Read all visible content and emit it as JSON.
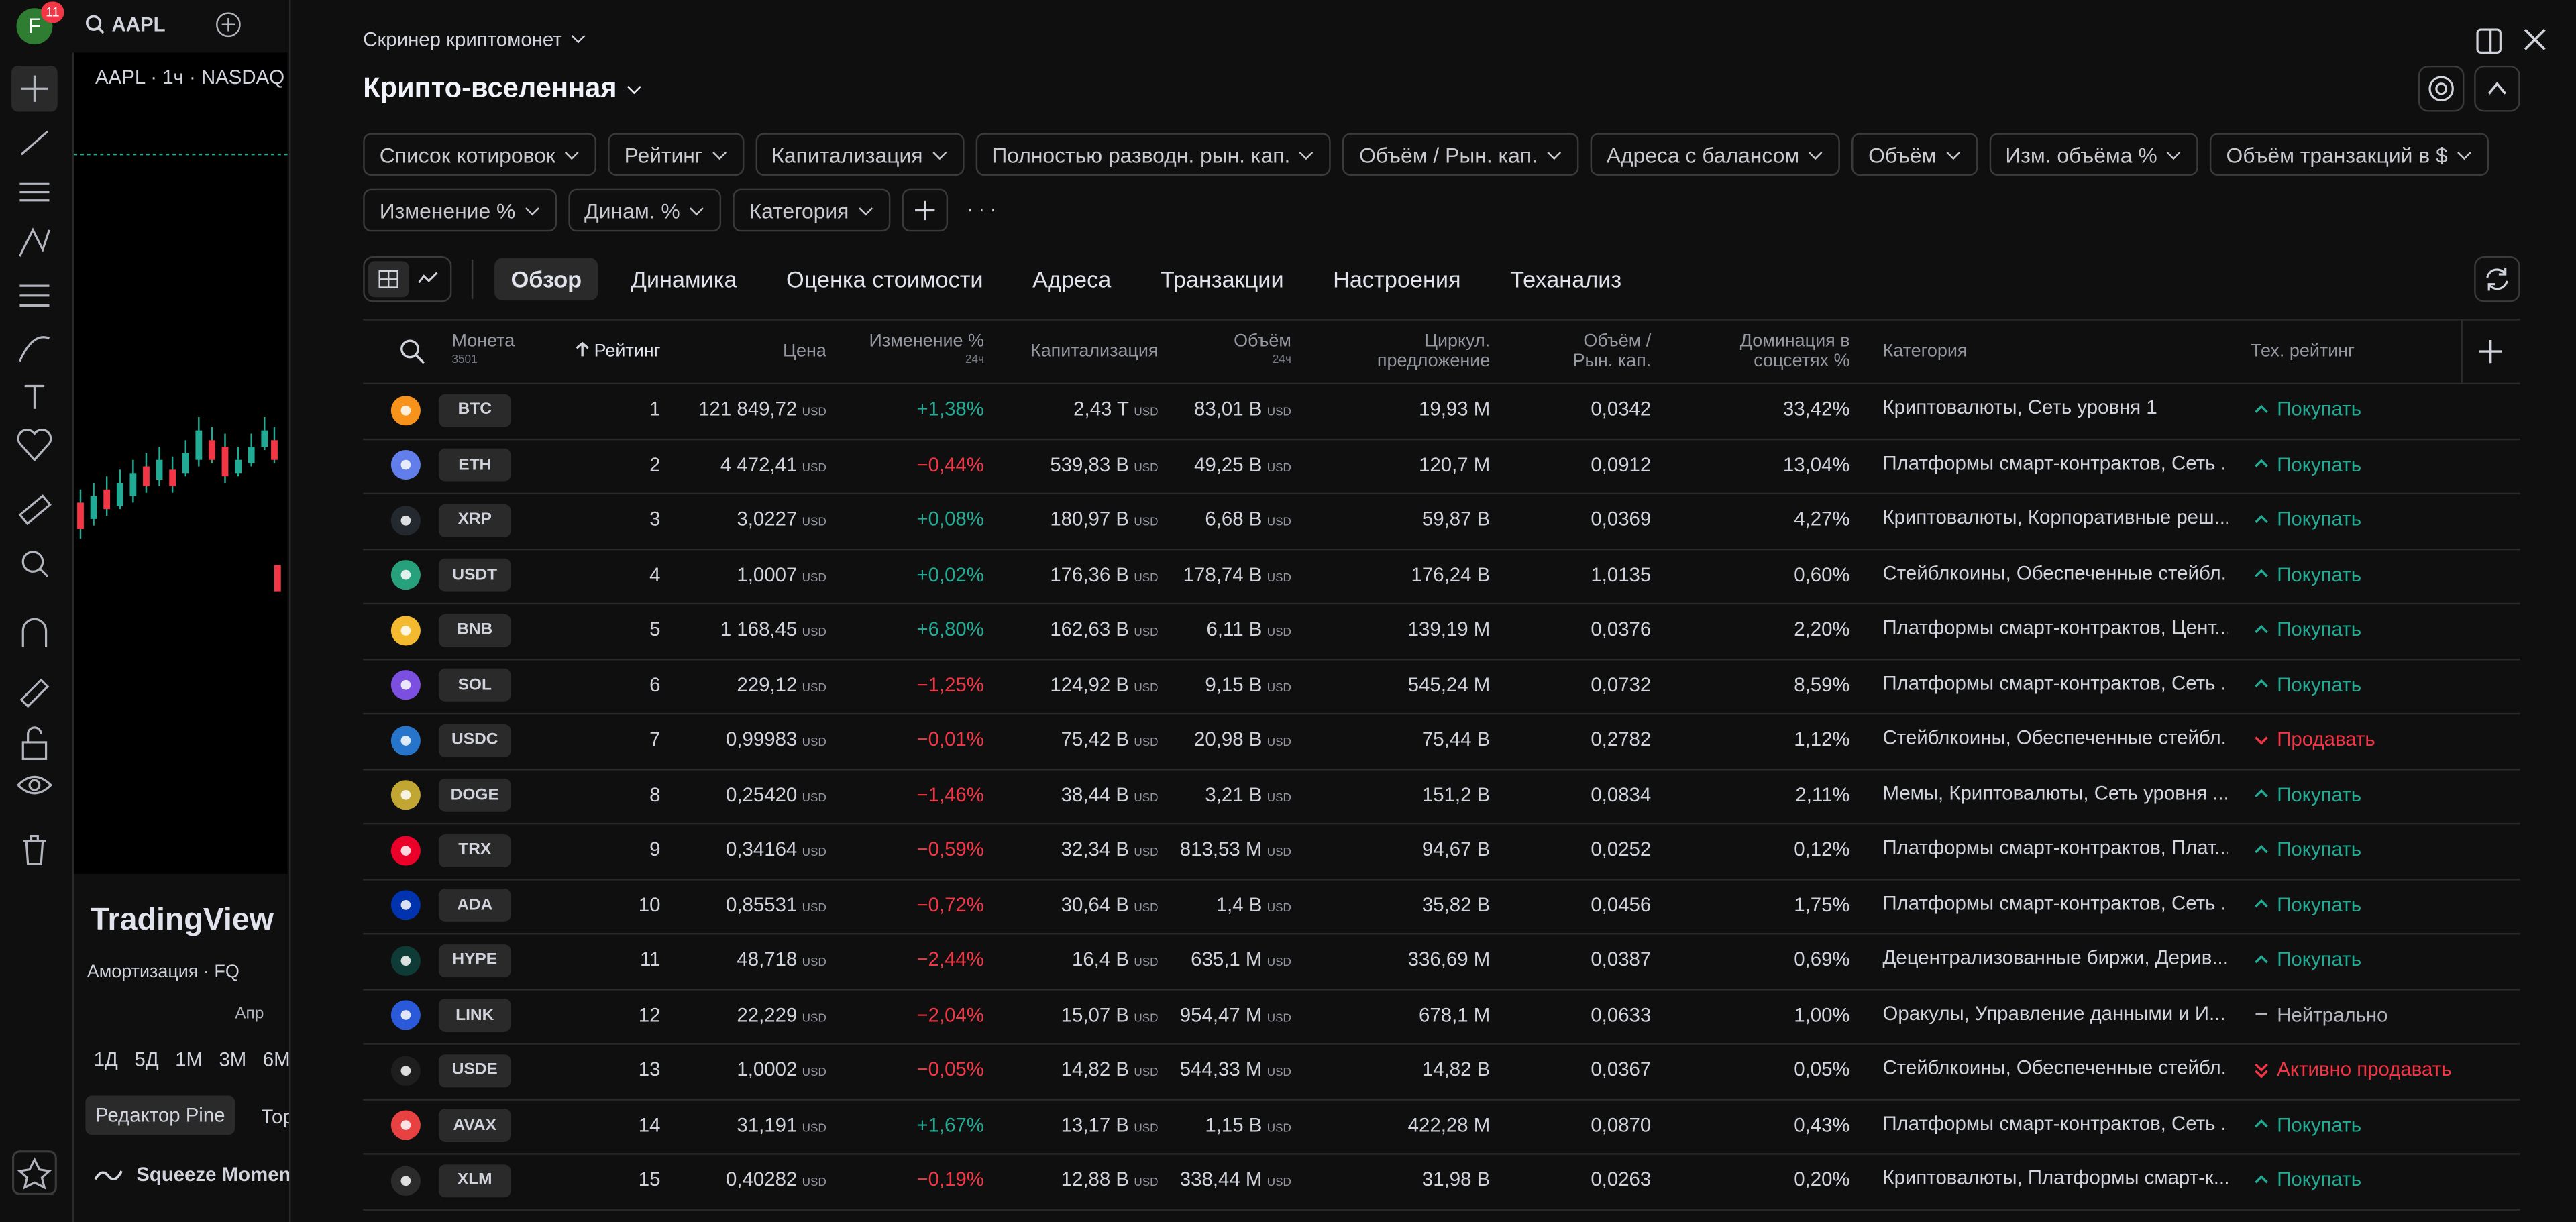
{
  "left": {
    "avatar": "F",
    "notifications": "11",
    "symbol": "AAPL",
    "chart_label": "AAPL · 1ч · NASDAQ",
    "logo": "TradingView",
    "panel_label": "Амортизация · FQ",
    "axis_month": "Апр",
    "periods": [
      "1Д",
      "5Д",
      "1М",
      "3М",
      "6М"
    ],
    "pine_tab": "Редактор Pine",
    "next_tab": "Тор",
    "indicator": "Squeeze Moment"
  },
  "header": {
    "breadcrumb": "Скринер криптомонет",
    "title": "Крипто-вселенная"
  },
  "filters": [
    "Список котировок",
    "Рейтинг",
    "Капитализация",
    "Полностью разводн. рын. кап.",
    "Объём / Рын. кап.",
    "Адреса с балансом",
    "Объём",
    "Изм. объёма %",
    "Объём транзакций в $",
    "Изменение %",
    "Динам. %",
    "Категория"
  ],
  "tabs": {
    "items": [
      "Обзор",
      "Динамика",
      "Оценка стоимости",
      "Адреса",
      "Транзакции",
      "Настроения",
      "Теханализ"
    ],
    "active": 0
  },
  "table": {
    "currency": "USD",
    "columns": {
      "coin": {
        "label": "Монета",
        "sub": "3501"
      },
      "rank": {
        "label": "Рейтинг"
      },
      "price": {
        "label": "Цена"
      },
      "change": {
        "label": "Изменение %",
        "sub": "24ч"
      },
      "cap": {
        "label": "Капитализация"
      },
      "volume": {
        "label": "Объём",
        "sub": "24ч"
      },
      "circulating": {
        "label": "Циркул. предложение"
      },
      "vol_cap": {
        "label": "Объём / Рын. кап."
      },
      "dominance": {
        "label": "Доминация в соцсетях %"
      },
      "category": {
        "label": "Категория"
      },
      "rating": {
        "label": "Тех. рейтинг"
      }
    },
    "colors": {
      "up": "#22ab94",
      "down": "#f23645"
    },
    "rows": [
      {
        "ticker": "BTC",
        "icon_color": "#f7931a",
        "rank": 1,
        "price": "121 849,72",
        "change": "+1,38%",
        "cap": "2,43 T",
        "volume": "83,01 B",
        "circulating": "19,93 M",
        "vol_cap": "0,0342",
        "dominance": "33,42%",
        "category": "Криптовалюты, Сеть уровня 1",
        "rating": "Покупать",
        "rating_color": "#22ab94",
        "rating_arrow": "up"
      },
      {
        "ticker": "ETH",
        "icon_color": "#627eea",
        "rank": 2,
        "price": "4 472,41",
        "change": "−0,44%",
        "cap": "539,83 B",
        "volume": "49,25 B",
        "circulating": "120,7 M",
        "vol_cap": "0,0912",
        "dominance": "13,04%",
        "category": "Платформы смарт-контрактов, Сеть ...",
        "rating": "Покупать",
        "rating_color": "#22ab94",
        "rating_arrow": "up"
      },
      {
        "ticker": "XRP",
        "icon_color": "#23292f",
        "rank": 3,
        "price": "3,0227",
        "change": "+0,08%",
        "cap": "180,97 B",
        "volume": "6,68 B",
        "circulating": "59,87 B",
        "vol_cap": "0,0369",
        "dominance": "4,27%",
        "category": "Криптовалюты, Корпоративные реш...",
        "rating": "Покупать",
        "rating_color": "#22ab94",
        "rating_arrow": "up"
      },
      {
        "ticker": "USDT",
        "icon_color": "#26a17b",
        "rank": 4,
        "price": "1,0007",
        "change": "+0,02%",
        "cap": "176,36 B",
        "volume": "178,74 B",
        "circulating": "176,24 B",
        "vol_cap": "1,0135",
        "dominance": "0,60%",
        "category": "Стейблкоины, Обеспеченные стейбл...",
        "rating": "Покупать",
        "rating_color": "#22ab94",
        "rating_arrow": "up"
      },
      {
        "ticker": "BNB",
        "icon_color": "#f3ba2f",
        "rank": 5,
        "price": "1 168,45",
        "change": "+6,80%",
        "cap": "162,63 B",
        "volume": "6,11 B",
        "circulating": "139,19 M",
        "vol_cap": "0,0376",
        "dominance": "2,20%",
        "category": "Платформы смарт-контрактов, Цент...",
        "rating": "Покупать",
        "rating_color": "#22ab94",
        "rating_arrow": "up"
      },
      {
        "ticker": "SOL",
        "icon_color": "#7b4fe0",
        "rank": 6,
        "price": "229,12",
        "change": "−1,25%",
        "cap": "124,92 B",
        "volume": "9,15 B",
        "circulating": "545,24 M",
        "vol_cap": "0,0732",
        "dominance": "8,59%",
        "category": "Платформы смарт-контрактов, Сеть ...",
        "rating": "Покупать",
        "rating_color": "#22ab94",
        "rating_arrow": "up"
      },
      {
        "ticker": "USDC",
        "icon_color": "#2775ca",
        "rank": 7,
        "price": "0,99983",
        "change": "−0,01%",
        "cap": "75,42 B",
        "volume": "20,98 B",
        "circulating": "75,44 B",
        "vol_cap": "0,2782",
        "dominance": "1,12%",
        "category": "Стейблкоины, Обеспеченные стейбл...",
        "rating": "Продавать",
        "rating_color": "#f23645",
        "rating_arrow": "down"
      },
      {
        "ticker": "DOGE",
        "icon_color": "#c2a633",
        "rank": 8,
        "price": "0,25420",
        "change": "−1,46%",
        "cap": "38,44 B",
        "volume": "3,21 B",
        "circulating": "151,2 B",
        "vol_cap": "0,0834",
        "dominance": "2,11%",
        "category": "Мемы, Криптовалюты, Сеть уровня ...",
        "rating": "Покупать",
        "rating_color": "#22ab94",
        "rating_arrow": "up"
      },
      {
        "ticker": "TRX",
        "icon_color": "#eb0029",
        "rank": 9,
        "price": "0,34164",
        "change": "−0,59%",
        "cap": "32,34 B",
        "volume": "813,53 M",
        "circulating": "94,67 B",
        "vol_cap": "0,0252",
        "dominance": "0,12%",
        "category": "Платформы смарт-контрактов, Плат...",
        "rating": "Покупать",
        "rating_color": "#22ab94",
        "rating_arrow": "up"
      },
      {
        "ticker": "ADA",
        "icon_color": "#0033ad",
        "rank": 10,
        "price": "0,85531",
        "change": "−0,72%",
        "cap": "30,64 B",
        "volume": "1,4 B",
        "circulating": "35,82 B",
        "vol_cap": "0,0456",
        "dominance": "1,75%",
        "category": "Платформы смарт-контрактов, Сеть ...",
        "rating": "Покупать",
        "rating_color": "#22ab94",
        "rating_arrow": "up"
      },
      {
        "ticker": "HYPE",
        "icon_color": "#0f3b36",
        "rank": 11,
        "price": "48,718",
        "change": "−2,44%",
        "cap": "16,4 B",
        "volume": "635,1 M",
        "circulating": "336,69 M",
        "vol_cap": "0,0387",
        "dominance": "0,69%",
        "category": "Децентрализованные биржи, Дерив...",
        "rating": "Покупать",
        "rating_color": "#22ab94",
        "rating_arrow": "up"
      },
      {
        "ticker": "LINK",
        "icon_color": "#2a5ada",
        "rank": 12,
        "price": "22,229",
        "change": "−2,04%",
        "cap": "15,07 B",
        "volume": "954,47 M",
        "circulating": "678,1 M",
        "vol_cap": "0,0633",
        "dominance": "1,00%",
        "category": "Оракулы, Управление данными и И...",
        "rating": "Нейтрально",
        "rating_color": "#b2b5be",
        "rating_arrow": "flat"
      },
      {
        "ticker": "USDE",
        "icon_color": "#1e1e1e",
        "rank": 13,
        "price": "1,0002",
        "change": "−0,05%",
        "cap": "14,82 B",
        "volume": "544,33 M",
        "circulating": "14,82 B",
        "vol_cap": "0,0367",
        "dominance": "0,05%",
        "category": "Стейблкоины, Обеспеченные стейбл...",
        "rating": "Активно продавать",
        "rating_color": "#f23645",
        "rating_arrow": "double-down"
      },
      {
        "ticker": "AVAX",
        "icon_color": "#e84142",
        "rank": 14,
        "price": "31,191",
        "change": "+1,67%",
        "cap": "13,17 B",
        "volume": "1,15 B",
        "circulating": "422,28 M",
        "vol_cap": "0,0870",
        "dominance": "0,43%",
        "category": "Платформы смарт-контрактов, Сеть ...",
        "rating": "Покупать",
        "rating_color": "#22ab94",
        "rating_arrow": "up"
      },
      {
        "ticker": "XLM",
        "icon_color": "#2b2b2b",
        "rank": 15,
        "price": "0,40282",
        "change": "−0,19%",
        "cap": "12,88 B",
        "volume": "338,44 M",
        "circulating": "31,98 B",
        "vol_cap": "0,0263",
        "dominance": "0,20%",
        "category": "Криптовалюты, Платформы смарт-к...",
        "rating": "Покупать",
        "rating_color": "#22ab94",
        "rating_arrow": "up"
      }
    ]
  }
}
